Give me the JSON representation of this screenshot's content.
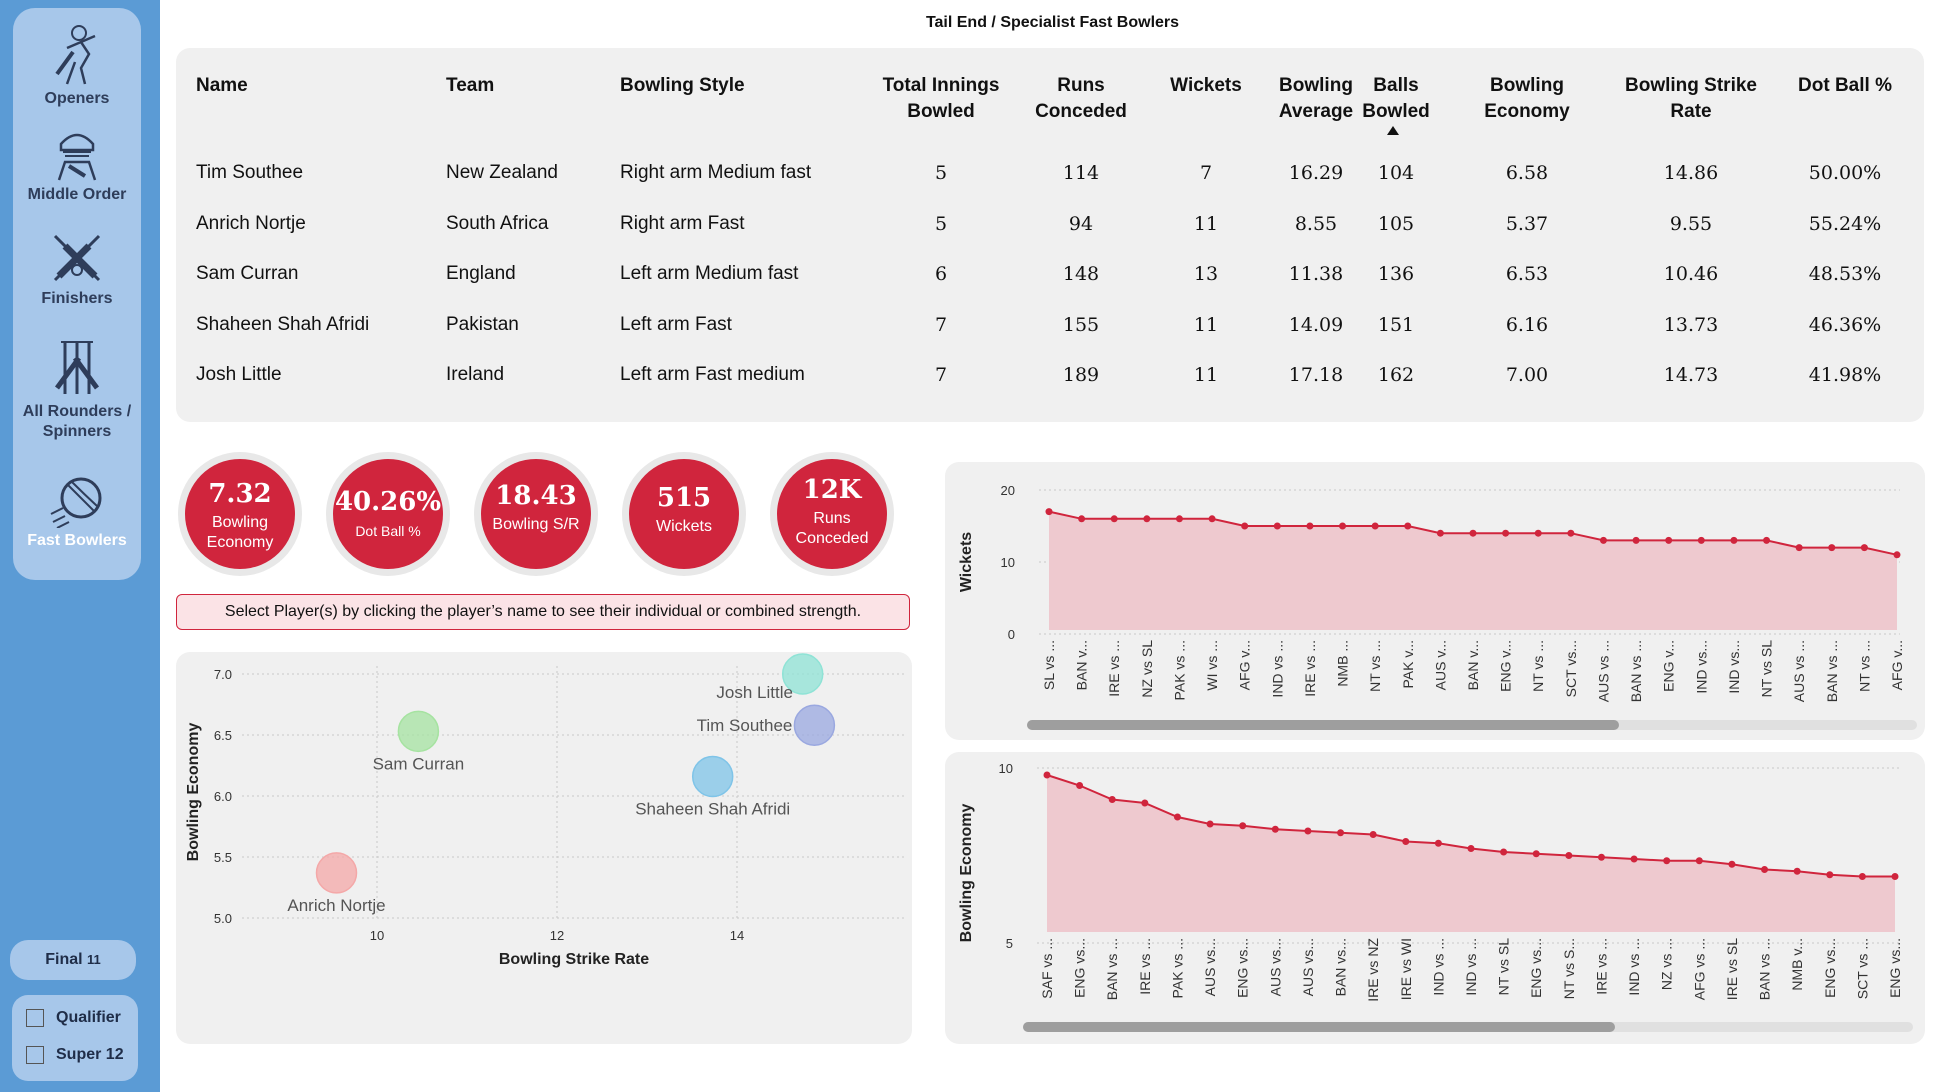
{
  "sidebar": {
    "items": [
      {
        "label": "Openers",
        "icon": "batsman-icon"
      },
      {
        "label": "Middle Order",
        "icon": "batsman-helmet-icon"
      },
      {
        "label": "Finishers",
        "icon": "crossed-bats-icon"
      },
      {
        "label": "All Rounders / Spinners",
        "icon": "bats-wicket-icon"
      },
      {
        "label": "Fast Bowlers",
        "icon": "cricket-ball-icon"
      }
    ],
    "final_label": "Final",
    "final_count": "11",
    "filters": [
      {
        "label": "Qualifier",
        "checked": false
      },
      {
        "label": "Super 12",
        "checked": false
      }
    ]
  },
  "page": {
    "title": "Tail End / Specialist Fast Bowlers"
  },
  "table": {
    "headers": [
      "Name",
      "Team",
      "Bowling Style",
      "Total Innings Bowled",
      "Runs Conceded",
      "Wickets",
      "Bowling Average",
      "Balls Bowled",
      "Bowling Economy",
      "Bowling Strike Rate",
      "Dot Ball %"
    ],
    "rows": [
      [
        "Tim Southee",
        "New Zealand",
        "Right arm Medium fast",
        "5",
        "114",
        "7",
        "16.29",
        "104",
        "6.58",
        "14.86",
        "50.00%"
      ],
      [
        "Anrich Nortje",
        "South Africa",
        "Right arm Fast",
        "5",
        "94",
        "11",
        "8.55",
        "105",
        "5.37",
        "9.55",
        "55.24%"
      ],
      [
        "Sam Curran",
        "England",
        "Left arm Medium fast",
        "6",
        "148",
        "13",
        "11.38",
        "136",
        "6.53",
        "10.46",
        "48.53%"
      ],
      [
        "Shaheen Shah Afridi",
        "Pakistan",
        "Left arm Fast",
        "7",
        "155",
        "11",
        "14.09",
        "151",
        "6.16",
        "13.73",
        "46.36%"
      ],
      [
        "Josh Little",
        "Ireland",
        "Left arm Fast medium",
        "7",
        "189",
        "11",
        "17.18",
        "162",
        "7.00",
        "14.73",
        "41.98%"
      ]
    ],
    "sort_column": "Balls Bowled"
  },
  "kpis": [
    {
      "value": "7.32",
      "label": "Bowling Economy"
    },
    {
      "value": "40.26%",
      "label": "Dot Ball %"
    },
    {
      "value": "18.43",
      "label": "Bowling S/R"
    },
    {
      "value": "515",
      "label": "Wickets"
    },
    {
      "value": "12K",
      "label": "Runs Conceded"
    }
  ],
  "banner": "Select Player(s) by clicking the player’s name to see their individual or combined strength.",
  "colors": {
    "accent": "#d0253d",
    "sidebar": "#5b9bd5",
    "sidebar_group": "#a7c7ea",
    "panel": "#f0f0f0",
    "area_fill": "#eec9cf"
  },
  "chart_data": [
    {
      "type": "scatter",
      "xlabel": "Bowling Strike Rate",
      "ylabel": "Bowling Economy",
      "xlim": [
        8.5,
        15.0
      ],
      "ylim": [
        5.0,
        7.0
      ],
      "xticks": [
        "10",
        "12",
        "14"
      ],
      "yticks": [
        "5.0",
        "5.5",
        "6.0",
        "6.5",
        "7.0"
      ],
      "points": [
        {
          "name": "Anrich Nortje",
          "x": 9.55,
          "y": 5.37,
          "color": "#f4a8a8"
        },
        {
          "name": "Sam Curran",
          "x": 10.46,
          "y": 6.53,
          "color": "#a6e3a1"
        },
        {
          "name": "Shaheen Shah Afridi",
          "x": 13.73,
          "y": 6.16,
          "color": "#7fc4e8"
        },
        {
          "name": "Tim Southee",
          "x": 14.86,
          "y": 6.58,
          "color": "#9aa8e0"
        },
        {
          "name": "Josh Little",
          "x": 14.73,
          "y": 7.0,
          "color": "#8fe3d6"
        }
      ]
    },
    {
      "type": "area",
      "ylabel": "Wickets",
      "ylim": [
        0,
        20
      ],
      "yticks": [
        "0",
        "10",
        "20"
      ],
      "categories": [
        "SL vs ...",
        "BAN v...",
        "IRE vs ...",
        "NZ vs SL",
        "PAK vs ...",
        "WI vs ...",
        "AFG v...",
        "IND vs ...",
        "IRE vs ...",
        "NMB ...",
        "NT vs ...",
        "PAK v...",
        "AUS v...",
        "BAN v...",
        "ENG v...",
        "NT vs ...",
        "SCT vs...",
        "AUS vs ...",
        "BAN vs ...",
        "ENG v...",
        "IND vs...",
        "IND vs...",
        "NT vs SL",
        "AUS vs ...",
        "BAN vs ...",
        "NT vs ...",
        "AFG v..."
      ],
      "values": [
        17,
        16,
        16,
        16,
        16,
        16,
        15,
        15,
        15,
        15,
        15,
        15,
        14,
        14,
        14,
        14,
        14,
        13,
        13,
        13,
        13,
        13,
        13,
        12,
        12,
        12,
        11
      ]
    },
    {
      "type": "area",
      "ylabel": "Bowling Economy",
      "ylim": [
        4,
        10
      ],
      "yticks": [
        "5",
        "10"
      ],
      "categories": [
        "SAF vs ...",
        "ENG vs...",
        "BAN vs ...",
        "IRE vs ...",
        "PAK vs ...",
        "AUS vs...",
        "ENG vs...",
        "AUS vs...",
        "AUS vs...",
        "BAN vs...",
        "IRE vs NZ",
        "IRE vs WI",
        "IND vs ...",
        "IND vs ...",
        "NT vs SL",
        "ENG vs...",
        "NT vs S...",
        "IRE vs ...",
        "IND vs ...",
        "NZ vs ...",
        "AFG vs ...",
        "IRE vs SL",
        "BAN vs ...",
        "NMB v...",
        "ENG vs...",
        "SCT vs ...",
        "ENG vs..."
      ],
      "values": [
        9.8,
        9.5,
        9.1,
        9.0,
        8.6,
        8.4,
        8.35,
        8.25,
        8.2,
        8.15,
        8.1,
        7.9,
        7.85,
        7.7,
        7.6,
        7.55,
        7.5,
        7.45,
        7.4,
        7.35,
        7.35,
        7.25,
        7.1,
        7.05,
        6.95,
        6.9,
        6.9
      ]
    }
  ]
}
